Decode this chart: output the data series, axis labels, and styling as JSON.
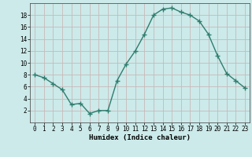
{
  "x": [
    0,
    1,
    2,
    3,
    4,
    5,
    6,
    7,
    8,
    9,
    10,
    11,
    12,
    13,
    14,
    15,
    16,
    17,
    18,
    19,
    20,
    21,
    22,
    23
  ],
  "y": [
    8,
    7.5,
    6.5,
    5.5,
    3,
    3.2,
    1.5,
    2,
    2,
    7,
    9.8,
    12,
    14.8,
    18,
    19,
    19.2,
    18.5,
    18,
    17,
    14.8,
    11.2,
    8.2,
    7,
    5.8
  ],
  "line_color": "#2e7d6e",
  "marker": "+",
  "marker_size": 4,
  "linewidth": 1.0,
  "xlabel": "Humidex (Indice chaleur)",
  "xlim": [
    -0.5,
    23.5
  ],
  "ylim": [
    0,
    20
  ],
  "yticks": [
    2,
    4,
    6,
    8,
    10,
    12,
    14,
    16,
    18
  ],
  "xticks": [
    0,
    1,
    2,
    3,
    4,
    5,
    6,
    7,
    8,
    9,
    10,
    11,
    12,
    13,
    14,
    15,
    16,
    17,
    18,
    19,
    20,
    21,
    22,
    23
  ],
  "bg_color": "#cceaea",
  "grid_color": "#b8d8d8",
  "xlabel_fontsize": 6.5,
  "tick_fontsize": 5.5
}
